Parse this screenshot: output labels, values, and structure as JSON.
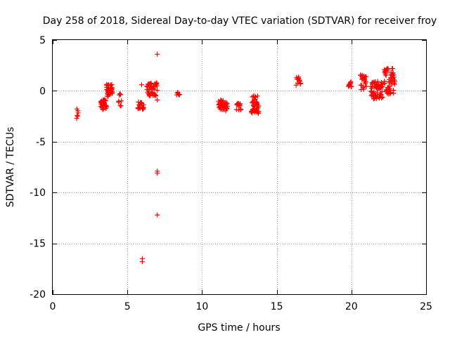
{
  "chart_data": {
    "type": "scatter",
    "title": "Day 258 of 2018, Sidereal Day-to-day VTEC variation (SDTVAR) for receiver froy",
    "xlabel": "GPS time / hours",
    "ylabel": "SDTVAR / TECUs",
    "xlim": [
      0,
      25
    ],
    "ylim": [
      -20,
      5
    ],
    "xticks": [
      0,
      5,
      10,
      15,
      20,
      25
    ],
    "yticks": [
      -20,
      -15,
      -10,
      -5,
      0,
      5
    ],
    "grid": true,
    "marker": "plus",
    "color": "#ff0000",
    "clusters": [
      {
        "x": [
          1.6,
          1.7
        ],
        "y": [
          -2.7,
          -1.7
        ],
        "n": 6
      },
      {
        "x": [
          3.2,
          3.6
        ],
        "y": [
          -1.9,
          -0.8
        ],
        "n": 32
      },
      {
        "x": [
          3.6,
          4.0
        ],
        "y": [
          -0.6,
          0.7
        ],
        "n": 40
      },
      {
        "x": [
          4.4,
          4.6
        ],
        "y": [
          -1.6,
          -0.1
        ],
        "n": 8
      },
      {
        "x": [
          5.7,
          6.1
        ],
        "y": [
          -1.8,
          -1.1
        ],
        "n": 22
      },
      {
        "x": [
          6.3,
          7.0
        ],
        "y": [
          -0.5,
          0.8
        ],
        "n": 42
      },
      {
        "x": [
          8.3,
          8.5
        ],
        "y": [
          -0.5,
          -0.1
        ],
        "n": 6
      },
      {
        "x": [
          11.1,
          11.7
        ],
        "y": [
          -2.0,
          -0.9
        ],
        "n": 42
      },
      {
        "x": [
          12.3,
          12.6
        ],
        "y": [
          -1.9,
          -1.2
        ],
        "n": 14
      },
      {
        "x": [
          13.3,
          13.8
        ],
        "y": [
          -2.2,
          -0.5
        ],
        "n": 42
      },
      {
        "x": [
          16.3,
          16.6
        ],
        "y": [
          0.3,
          1.4
        ],
        "n": 12
      },
      {
        "x": [
          19.8,
          20.0
        ],
        "y": [
          0.0,
          0.9
        ],
        "n": 12
      },
      {
        "x": [
          20.6,
          21.0
        ],
        "y": [
          0.0,
          1.6
        ],
        "n": 24
      },
      {
        "x": [
          21.3,
          22.1
        ],
        "y": [
          -0.8,
          1.0
        ],
        "n": 60
      },
      {
        "x": [
          22.2,
          22.9
        ],
        "y": [
          -0.4,
          2.3
        ],
        "n": 55
      }
    ],
    "points": [
      {
        "x": 5.95,
        "y": 0.6
      },
      {
        "x": 6.9,
        "y": -0.5
      },
      {
        "x": 7.0,
        "y": -0.9
      },
      {
        "x": 7.0,
        "y": 3.6
      },
      {
        "x": 6.0,
        "y": -16.5
      },
      {
        "x": 6.0,
        "y": -16.8
      },
      {
        "x": 7.0,
        "y": -7.9
      },
      {
        "x": 7.0,
        "y": -8.1
      },
      {
        "x": 7.0,
        "y": -12.2
      }
    ]
  }
}
